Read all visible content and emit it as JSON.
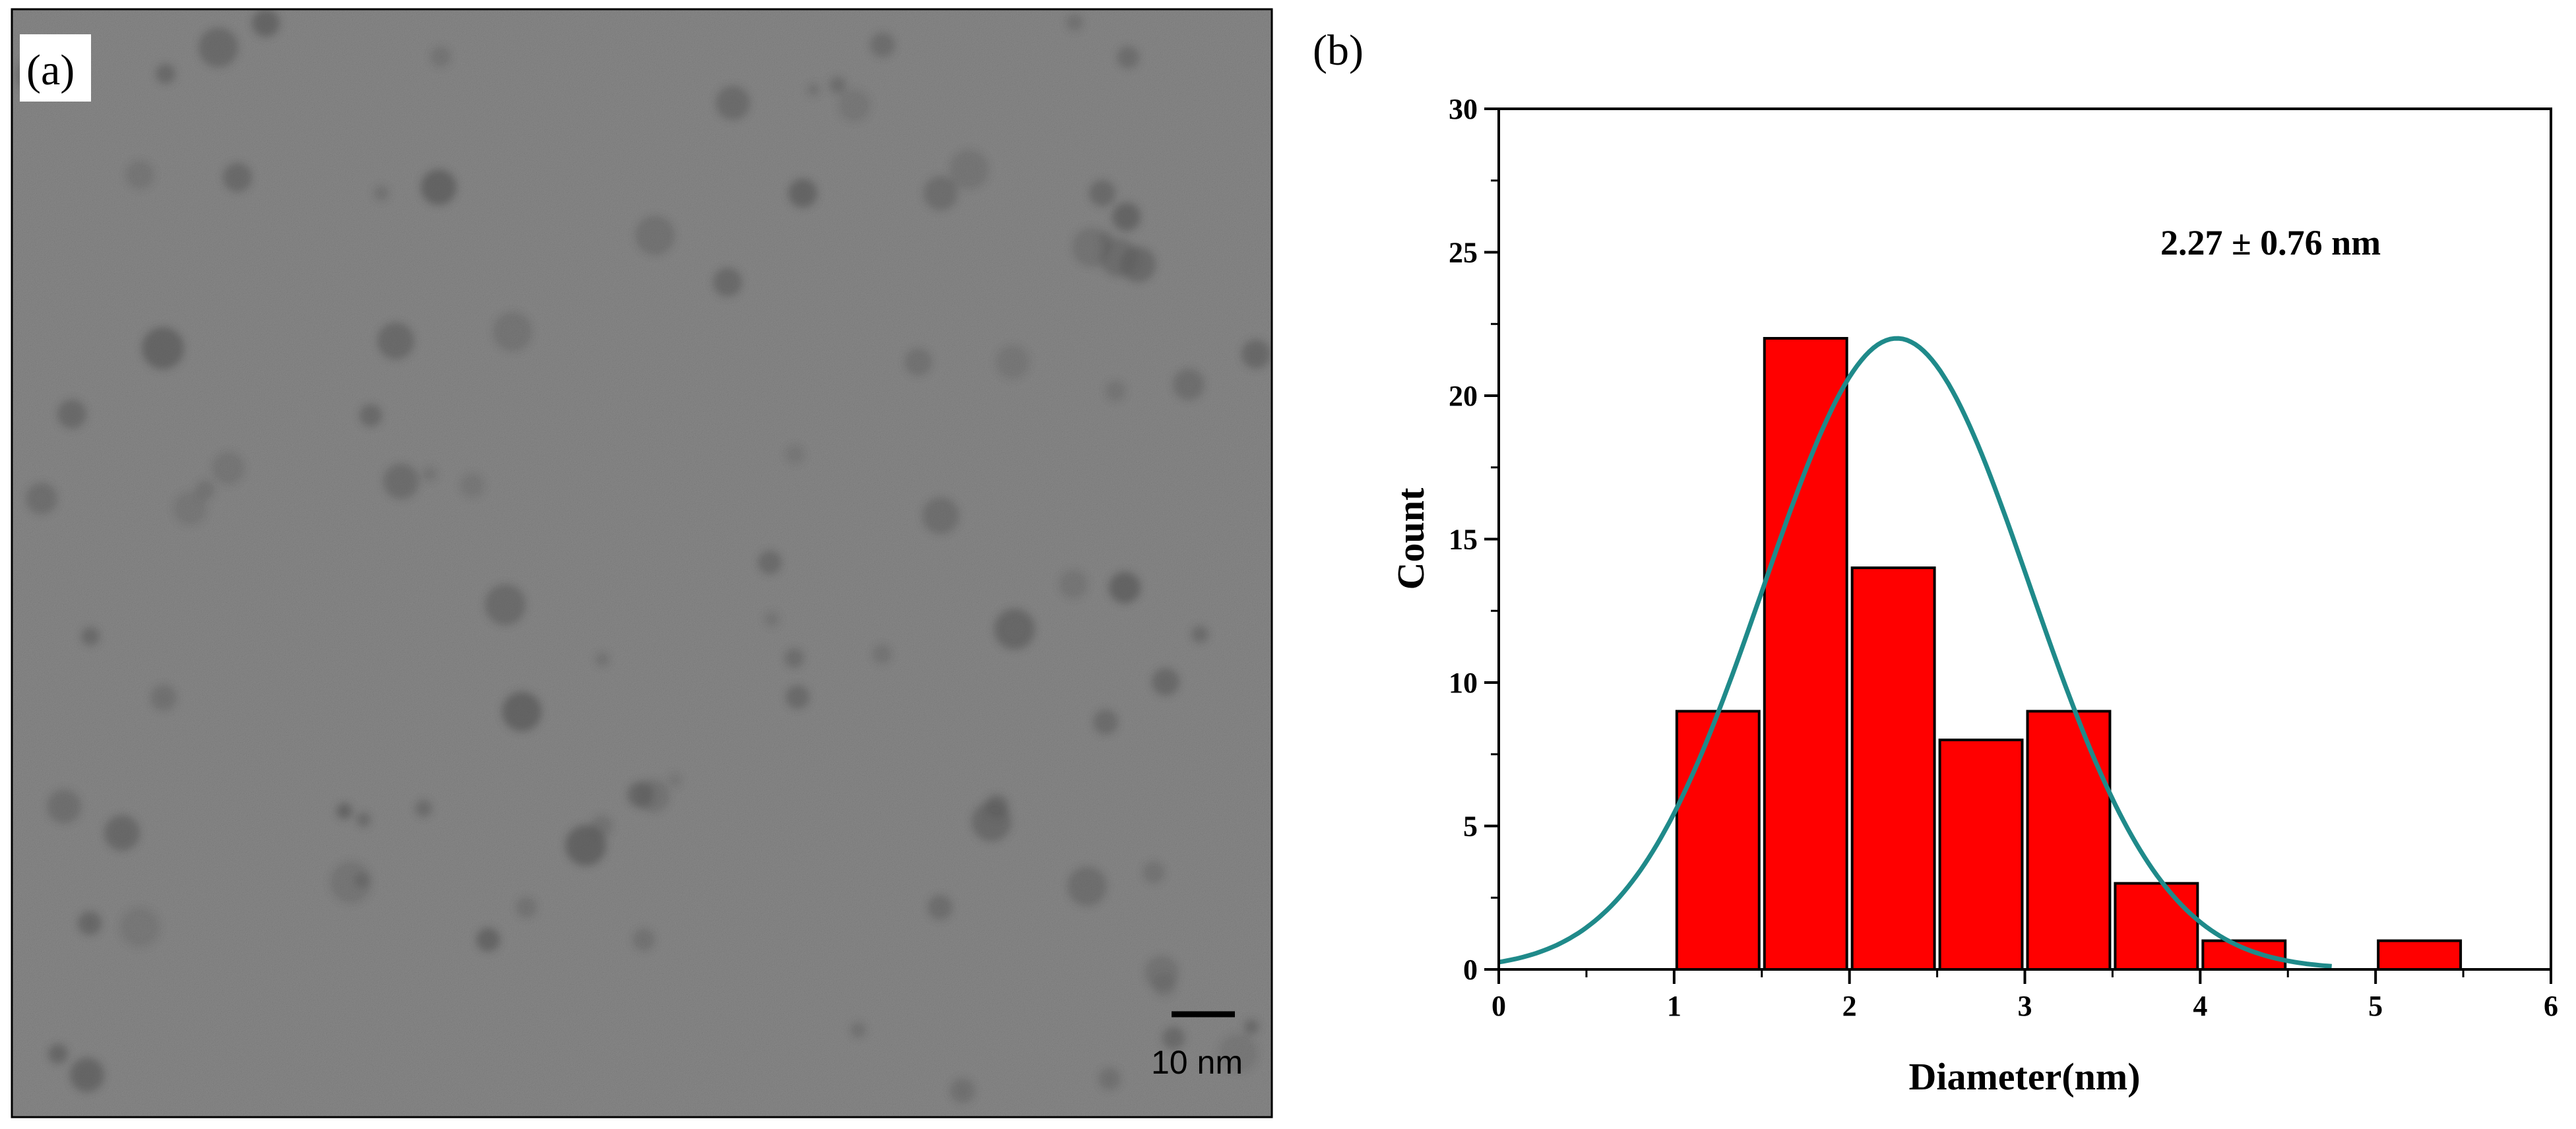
{
  "panel_a": {
    "label": "(a)",
    "scale_bar_text": "10 nm",
    "colors": {
      "background": "#8a8a8a",
      "particle": "#4a4a4a",
      "border": "#000000"
    }
  },
  "panel_b": {
    "label": "(b)",
    "stats_text": "2.27 ± 0.76 nm"
  },
  "colors": {
    "bar_fill": "#ff0000",
    "bar_stroke": "#000000",
    "fit_curve": "#1f8a8a"
  },
  "chart_data": {
    "type": "bar",
    "subtype": "histogram-with-gaussian-fit",
    "title": "",
    "xlabel": "Diameter(nm)",
    "ylabel": "Count",
    "xlim": [
      0,
      6
    ],
    "ylim": [
      0,
      30
    ],
    "x_ticks": [
      0,
      1,
      2,
      3,
      4,
      5,
      6
    ],
    "y_ticks": [
      0,
      5,
      10,
      15,
      20,
      25,
      30
    ],
    "bin_width": 0.5,
    "bins": [
      {
        "center": 1.25,
        "count": 9
      },
      {
        "center": 1.75,
        "count": 22
      },
      {
        "center": 2.25,
        "count": 14
      },
      {
        "center": 2.75,
        "count": 8
      },
      {
        "center": 3.25,
        "count": 9
      },
      {
        "center": 3.75,
        "count": 3
      },
      {
        "center": 4.25,
        "count": 1
      },
      {
        "center": 5.25,
        "count": 1
      }
    ],
    "fit": {
      "type": "gaussian",
      "mean": 2.27,
      "sigma": 0.76,
      "peak": 22,
      "x_range": [
        0,
        4.75
      ]
    },
    "annotation": "2.27 ± 0.76 nm"
  }
}
